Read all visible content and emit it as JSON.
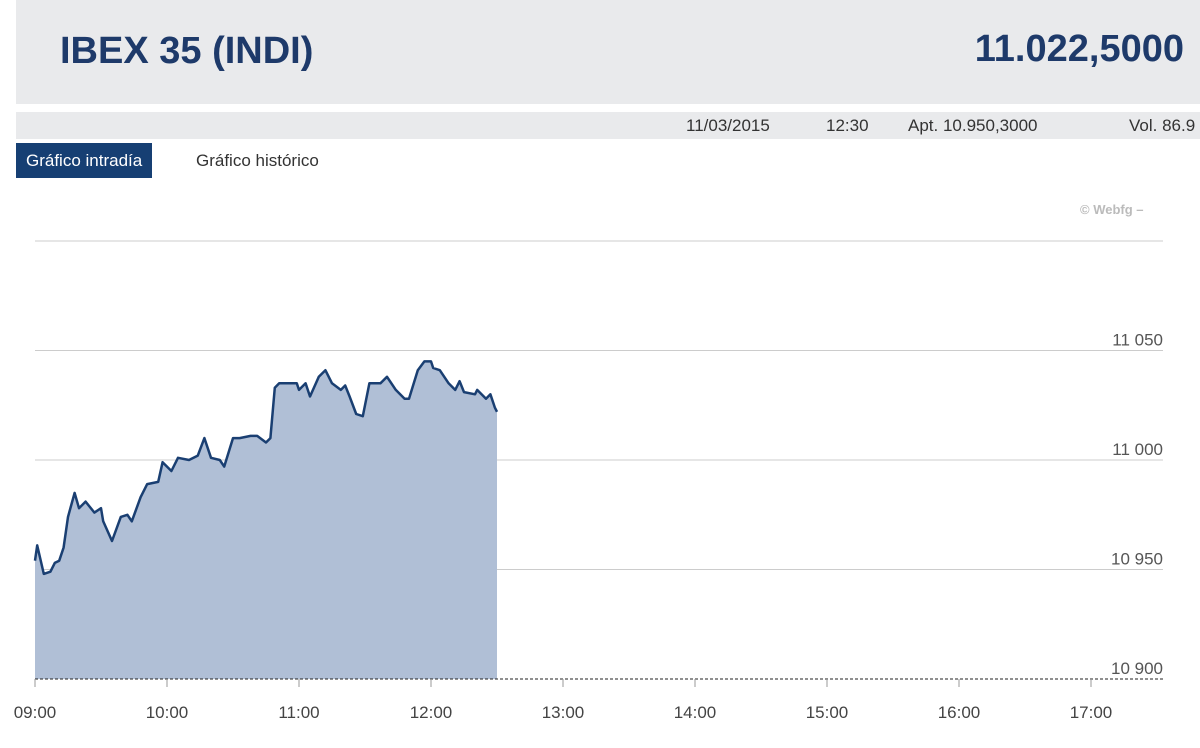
{
  "header": {
    "title": "IBEX 35 (INDI)",
    "price": "11.022,5000"
  },
  "infobar": {
    "date": "11/03/2015",
    "time": "12:30",
    "open": "Apt. 10.950,3000",
    "volume": "Vol. 86.9"
  },
  "tabs": [
    {
      "label": "Gráfico intradía",
      "active": true
    },
    {
      "label": "Gráfico histórico",
      "active": false
    }
  ],
  "credit": "© Webfg –",
  "chart_data": {
    "type": "area",
    "title": "",
    "xlabel": "",
    "ylabel": "",
    "xlim": [
      "09:00",
      "17:00"
    ],
    "ylim": [
      10900,
      11100
    ],
    "grid": true,
    "colors": {
      "line": "#1a3f72",
      "fill": "#b0bfd6"
    },
    "x_ticks": [
      "09:00",
      "10:00",
      "11:00",
      "12:00",
      "13:00",
      "14:00",
      "15:00",
      "16:00",
      "17:00"
    ],
    "y_ticks": [
      {
        "value": 11050,
        "label": "11 050"
      },
      {
        "value": 11000,
        "label": "11 000"
      },
      {
        "value": 10950,
        "label": "10 950"
      },
      {
        "value": 10900,
        "label": "10 900"
      }
    ],
    "x": [
      "09:00",
      "09:01",
      "09:04",
      "09:07",
      "09:09",
      "09:11",
      "09:13",
      "09:15",
      "09:18",
      "09:20",
      "09:23",
      "09:27",
      "09:30",
      "09:31",
      "09:35",
      "09:39",
      "09:42",
      "09:44",
      "09:48",
      "09:51",
      "09:56",
      "09:58",
      "10:02",
      "10:05",
      "10:10",
      "10:14",
      "10:17",
      "10:20",
      "10:24",
      "10:26",
      "10:30",
      "10:33",
      "10:38",
      "10:41",
      "10:45",
      "10:47",
      "10:49",
      "10:51",
      "10:55",
      "10:59",
      "11:00",
      "11:03",
      "11:05",
      "11:09",
      "11:12",
      "11:15",
      "11:19",
      "11:21",
      "11:23",
      "11:26",
      "11:29",
      "11:32",
      "11:37",
      "11:40",
      "11:44",
      "11:48",
      "11:50",
      "11:54",
      "11:57",
      "12:00",
      "12:01",
      "12:04",
      "12:08",
      "12:11",
      "12:13",
      "12:15",
      "12:20",
      "12:21",
      "12:25",
      "12:27",
      "12:29",
      "12:30"
    ],
    "values": [
      10954,
      10961,
      10948,
      10949,
      10953,
      10954,
      10960,
      10974,
      10985,
      10978,
      10981,
      10976,
      10978,
      10972,
      10963,
      10974,
      10975,
      10972,
      10983,
      10989,
      10990,
      10999,
      10995,
      11001,
      11000,
      11002,
      11010,
      11001,
      11000,
      10997,
      11010,
      11010,
      11011,
      11011,
      11008,
      11010,
      11033,
      11035,
      11035,
      11035,
      11032,
      11035,
      11029,
      11038,
      11041,
      11035,
      11032,
      11034,
      11029,
      11021,
      11020,
      11035,
      11035,
      11038,
      11032,
      11028,
      11028,
      11041,
      11045,
      11045,
      11042,
      11041,
      11035,
      11032,
      11036,
      11031,
      11030,
      11032,
      11028,
      11030,
      11024,
      11022
    ]
  }
}
